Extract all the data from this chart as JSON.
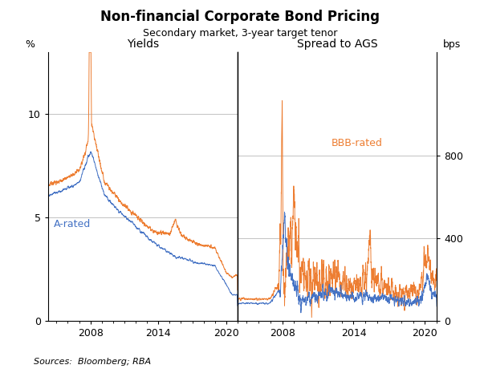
{
  "title": "Non-financial Corporate Bond Pricing",
  "subtitle": "Secondary market, 3-year target tenor",
  "left_ylabel": "%",
  "right_ylabel": "bps",
  "left_panel_title": "Yields",
  "right_panel_title": "Spread to AGS",
  "left_ylim": [
    0,
    13
  ],
  "right_ylim": [
    0,
    1300
  ],
  "left_yticks": [
    0,
    5,
    10
  ],
  "right_yticks": [
    0,
    400,
    800
  ],
  "left_xticks": [
    2008,
    2014,
    2020
  ],
  "right_xticks": [
    2008,
    2014,
    2020
  ],
  "color_a": "#4472C4",
  "color_bbb": "#ED7D31",
  "label_a": "A-rated",
  "label_bbb": "BBB-rated",
  "source_text": "Sources:  Bloomberg; RBA",
  "xstart": 2004.25,
  "xend": 2021.0
}
